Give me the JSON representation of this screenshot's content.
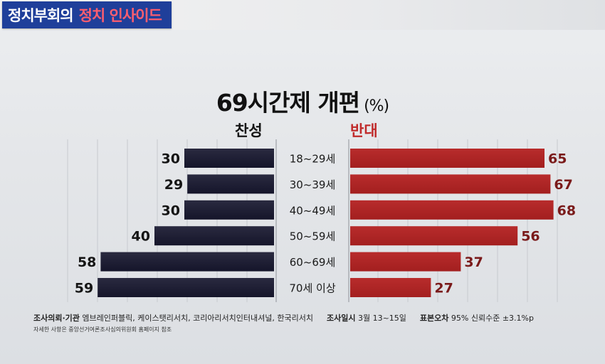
{
  "header": {
    "show_name": "정치부회의",
    "segment_name": "정치 인사이드"
  },
  "colors": {
    "banner_bg": "#1f3f9a",
    "approve": "#15152a",
    "oppose": "#a31f1f",
    "segment_text": "#ff5e6e"
  },
  "chart_data": {
    "type": "bar",
    "orientation": "horizontal-diverging",
    "title": "69시간제 개편",
    "unit": "(%)",
    "categories": [
      "18~29세",
      "30~39세",
      "40~49세",
      "50~59세",
      "60~69세",
      "70세 이상"
    ],
    "series": [
      {
        "name": "찬성",
        "values": [
          30,
          29,
          30,
          40,
          58,
          59
        ]
      },
      {
        "name": "반대",
        "values": [
          65,
          67,
          68,
          56,
          37,
          27
        ]
      }
    ],
    "grid": true,
    "legend": "top-center"
  },
  "footer": {
    "survey_org_label": "조사의뢰·기관",
    "survey_org_value": "엠브레인퍼블릭, 케이스탯리서치, 코리아리서치인터내셔널, 한국리서치",
    "survey_date_label": "조사일시",
    "survey_date_value": "3월 13~15일",
    "sampling_error_label": "표본오차",
    "sampling_error_value": "95% 신뢰수준 ±3.1%p",
    "note": "자세한 사항은 중앙선거여론조사심의위원회 홈페이지 참조"
  }
}
